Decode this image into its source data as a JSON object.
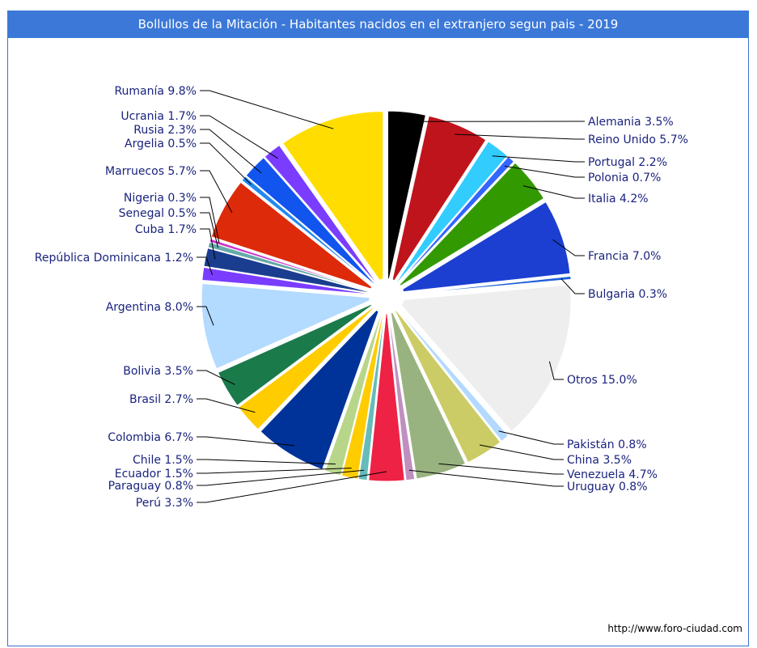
{
  "chart_data": {
    "type": "pie",
    "title": "Bollullos de la Mitación - Habitantes nacidos en el extranjero segun pais - 2019",
    "slices": [
      {
        "label": "Alemania",
        "value": 3.5,
        "text": "Alemania 3.5%",
        "color": "#000000"
      },
      {
        "label": "Reino Unido",
        "value": 5.7,
        "text": "Reino Unido 5.7%",
        "color": "#c0141c"
      },
      {
        "label": "Portugal",
        "value": 2.2,
        "text": "Portugal 2.2%",
        "color": "#33ccff"
      },
      {
        "label": "Polonia",
        "value": 0.7,
        "text": "Polonia 0.7%",
        "color": "#3366ff"
      },
      {
        "label": "Italia",
        "value": 4.2,
        "text": "Italia 4.2%",
        "color": "#339900"
      },
      {
        "label": "Francia",
        "value": 7.0,
        "text": "Francia 7.0%",
        "color": "#1c3fd1"
      },
      {
        "label": "Bulgaria",
        "value": 0.3,
        "text": "Bulgaria 0.3%",
        "color": "#1e5fd8"
      },
      {
        "label": "Otros",
        "value": 15.0,
        "text": "Otros 15.0%",
        "color": "#eeeeee"
      },
      {
        "label": "Pakistán",
        "value": 0.8,
        "text": "Pakistán 0.8%",
        "color": "#b3d9ff"
      },
      {
        "label": "China",
        "value": 3.5,
        "text": "China 3.5%",
        "color": "#cccc66"
      },
      {
        "label": "Venezuela",
        "value": 4.7,
        "text": "Venezuela 4.7%",
        "color": "#99b380"
      },
      {
        "label": "Uruguay",
        "value": 0.8,
        "text": "Uruguay 0.8%",
        "color": "#c08fbf"
      },
      {
        "label": "Perú",
        "value": 3.3,
        "text": "Perú 3.3%",
        "color": "#ee2244"
      },
      {
        "label": "Paraguay",
        "value": 0.8,
        "text": "Paraguay 0.8%",
        "color": "#66bbbb"
      },
      {
        "label": "Ecuador",
        "value": 1.5,
        "text": "Ecuador 1.5%",
        "color": "#ffcc00"
      },
      {
        "label": "Chile",
        "value": 1.5,
        "text": "Chile 1.5%",
        "color": "#b8d68a"
      },
      {
        "label": "Colombia",
        "value": 6.7,
        "text": "Colombia 6.7%",
        "color": "#003399"
      },
      {
        "label": "Brasil",
        "value": 2.7,
        "text": "Brasil 2.7%",
        "color": "#ffcc00"
      },
      {
        "label": "Bolivia",
        "value": 3.5,
        "text": "Bolivia 3.5%",
        "color": "#1a7a4a"
      },
      {
        "label": "Argentina",
        "value": 8.0,
        "text": "Argentina 8.0%",
        "color": "#b3daff"
      },
      {
        "label": "República Dominicana",
        "value": 1.2,
        "text": "República Dominicana 1.2%",
        "color": "#7a3dff"
      },
      {
        "label": "Cuba",
        "value": 1.7,
        "text": "Cuba 1.7%",
        "color": "#1a3d8f"
      },
      {
        "label": "Senegal",
        "value": 0.5,
        "text": "Senegal 0.5%",
        "color": "#66aaaa"
      },
      {
        "label": "Nigeria",
        "value": 0.3,
        "text": "Nigeria 0.3%",
        "color": "#cc33cc"
      },
      {
        "label": "Marruecos",
        "value": 5.7,
        "text": "Marruecos 5.7%",
        "color": "#dd2a0a"
      },
      {
        "label": "Argelia",
        "value": 0.5,
        "text": "Argelia 0.5%",
        "color": "#2288ee"
      },
      {
        "label": "Rusia",
        "value": 2.3,
        "text": "Rusia 2.3%",
        "color": "#1155ee"
      },
      {
        "label": "Ucrania",
        "value": 1.7,
        "text": "Ucrania 1.7%",
        "color": "#7a3dff"
      },
      {
        "label": "Rumanía",
        "value": 9.8,
        "text": "Rumanía 9.8%",
        "color": "#ffdd00"
      }
    ]
  },
  "credit": "http://www.foro-ciudad.com"
}
